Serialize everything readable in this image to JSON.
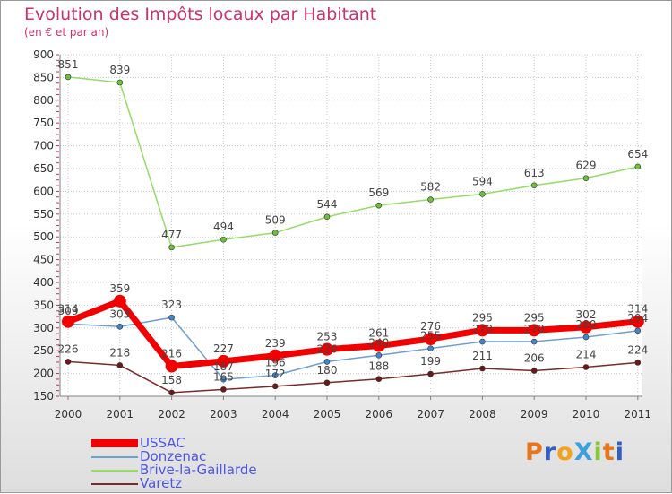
{
  "title": "Evolution des Impôts locaux par Habitant",
  "subtitle": "(en € et par an)",
  "logo": {
    "text": "ProXiti",
    "letters": [
      "P",
      "r",
      "o",
      "X",
      "i",
      "t",
      "i"
    ],
    "colors": [
      "#e8741c",
      "#2f5fc4",
      "#f2a21c",
      "#3aa0de",
      "#8cc43a",
      "#e8741c",
      "#2f5fc4"
    ]
  },
  "chart_data": {
    "type": "line",
    "title": "Evolution des Impôts locaux par Habitant",
    "subtitle": "(en € et par an)",
    "xlabel": "",
    "ylabel": "",
    "x": [
      "2000",
      "2001",
      "2002",
      "2003",
      "2004",
      "2005",
      "2006",
      "2007",
      "2008",
      "2009",
      "2010",
      "2011"
    ],
    "ylim": [
      150,
      900
    ],
    "yticks": [
      150,
      200,
      250,
      300,
      350,
      400,
      450,
      500,
      550,
      600,
      650,
      700,
      750,
      800,
      850,
      900
    ],
    "grid": true,
    "legend": "bottom-left",
    "series": [
      {
        "name": "Brive-la-Gaillarde",
        "color": "#94dc64",
        "marker": "#6cc03c",
        "width": 1.5,
        "values": [
          851,
          839,
          477,
          494,
          509,
          544,
          569,
          582,
          594,
          613,
          629,
          654
        ],
        "labels": [
          "851",
          "839",
          "477",
          "494",
          "509",
          "544",
          "569",
          "582",
          "594",
          "613",
          "629",
          "654"
        ]
      },
      {
        "name": "Donzenac",
        "color": "#6e9ed2",
        "marker": "#3f86cc",
        "width": 1.5,
        "values": [
          309,
          303,
          323,
          187,
          196,
          226,
          240,
          255,
          270,
          270,
          280,
          294
        ],
        "labels": [
          "309",
          "303",
          "323",
          "187",
          "196",
          "226",
          "240",
          "255",
          "270",
          "270",
          "280",
          "294"
        ]
      },
      {
        "name": "Varetz",
        "color": "#7a2a2a",
        "marker": "#6a1818",
        "width": 1.5,
        "values": [
          226,
          218,
          158,
          165,
          172,
          180,
          188,
          199,
          211,
          206,
          214,
          224
        ],
        "labels": [
          "226",
          "218",
          "158",
          "165",
          "172",
          "180",
          "188",
          "199",
          "211",
          "206",
          "214",
          "224"
        ]
      },
      {
        "name": "USSAC",
        "color": "#f20000",
        "marker": "#f20000",
        "width": 7,
        "values": [
          314,
          359,
          216,
          227,
          239,
          253,
          261,
          276,
          295,
          295,
          302,
          314
        ],
        "labels": [
          "314",
          "359",
          "216",
          "227",
          "239",
          "253",
          "261",
          "276",
          "295",
          "295",
          "302",
          "314"
        ]
      }
    ],
    "legend_entries": [
      {
        "name": "USSAC",
        "color": "#f20000",
        "thickness": 8
      },
      {
        "name": "Donzenac",
        "color": "#6e9ed2",
        "thickness": 2
      },
      {
        "name": "Brive-la-Gaillarde",
        "color": "#94dc64",
        "thickness": 2
      },
      {
        "name": "Varetz",
        "color": "#7a2a2a",
        "thickness": 2
      }
    ]
  }
}
